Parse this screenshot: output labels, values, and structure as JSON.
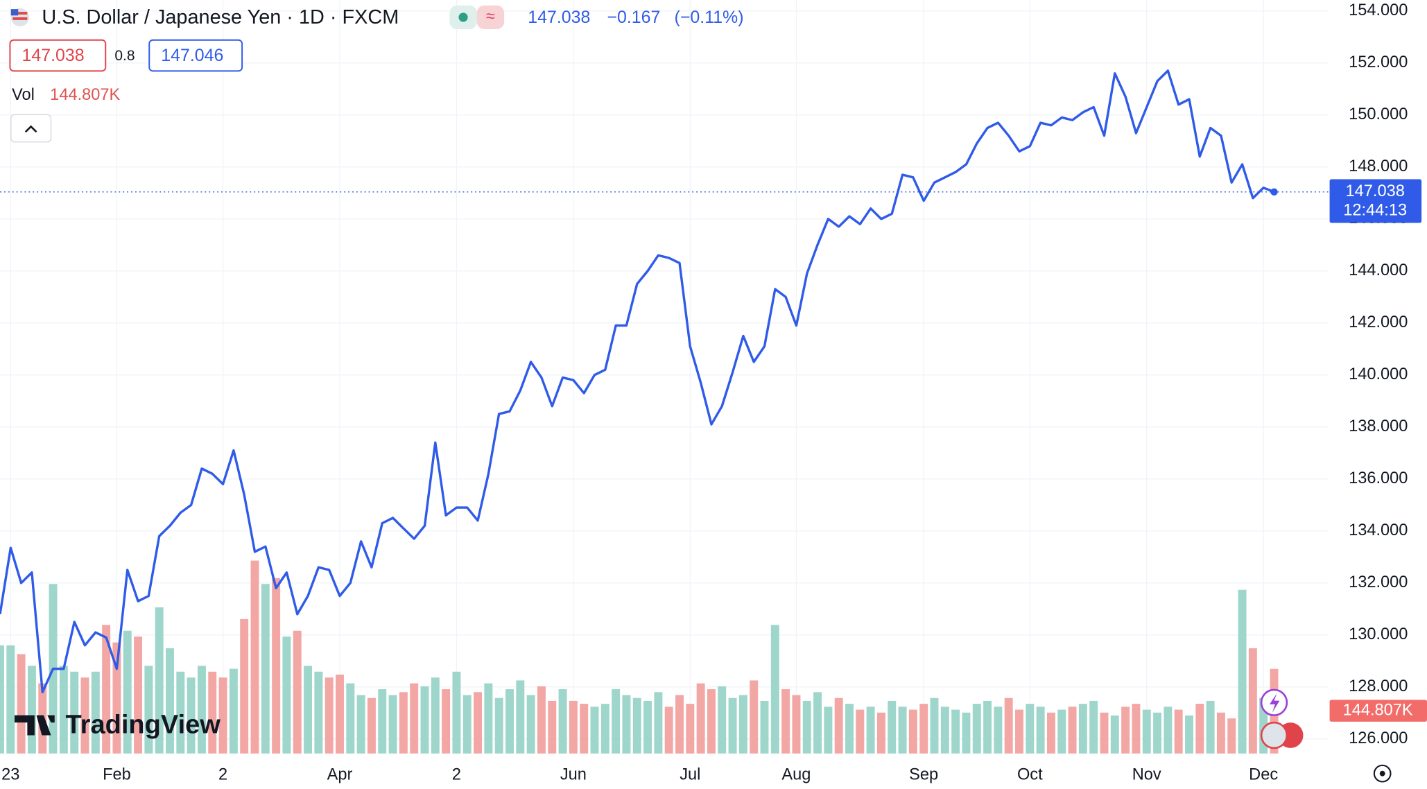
{
  "header": {
    "title": "U.S. Dollar / Japanese Yen · 1D · FXCM",
    "last": "147.038",
    "change": "−0.167",
    "change_pct": "(−0.11%)",
    "bid": "147.038",
    "spread": "0.8",
    "ask": "147.046",
    "volume_label": "Vol",
    "volume_value": "144.807K"
  },
  "brand": "TradingView",
  "chart_data": [
    {
      "type": "line",
      "color": "#2f5be8",
      "categories": [
        null,
        "23",
        null,
        null,
        null,
        null,
        null,
        null,
        null,
        null,
        null,
        "Feb",
        null,
        null,
        null,
        null,
        null,
        null,
        null,
        null,
        null,
        "2",
        null,
        null,
        null,
        null,
        null,
        null,
        null,
        null,
        null,
        null,
        "Apr",
        null,
        null,
        null,
        null,
        null,
        null,
        null,
        null,
        null,
        null,
        "2",
        null,
        null,
        null,
        null,
        null,
        null,
        null,
        null,
        null,
        null,
        "Jun",
        null,
        null,
        null,
        null,
        null,
        null,
        null,
        null,
        null,
        null,
        "Jul",
        null,
        null,
        null,
        null,
        null,
        null,
        null,
        null,
        null,
        "Aug",
        null,
        null,
        null,
        null,
        null,
        null,
        null,
        null,
        null,
        null,
        null,
        "Sep",
        null,
        null,
        null,
        null,
        null,
        null,
        null,
        null,
        null,
        "Oct",
        null,
        null,
        null,
        null,
        null,
        null,
        null,
        null,
        null,
        null,
        "Nov",
        null,
        null,
        null,
        null,
        null,
        null,
        null,
        null,
        null,
        null,
        "Dec",
        null
      ],
      "values": [
        130.8,
        133.35,
        132.0,
        132.4,
        127.8,
        128.7,
        128.7,
        130.5,
        129.6,
        130.1,
        129.9,
        128.7,
        132.5,
        131.3,
        131.5,
        133.8,
        134.2,
        134.7,
        135.0,
        136.4,
        136.2,
        135.8,
        137.1,
        135.4,
        133.2,
        133.4,
        131.8,
        132.4,
        130.8,
        131.5,
        132.6,
        132.5,
        131.5,
        132.0,
        133.6,
        132.6,
        134.3,
        134.5,
        134.1,
        133.7,
        134.2,
        137.4,
        134.6,
        134.9,
        134.9,
        134.4,
        136.2,
        138.5,
        138.6,
        139.4,
        140.5,
        139.9,
        138.8,
        139.9,
        139.8,
        139.3,
        140.0,
        140.2,
        141.9,
        141.9,
        143.5,
        144.0,
        144.6,
        144.5,
        144.3,
        141.1,
        139.7,
        138.1,
        138.8,
        140.1,
        141.5,
        140.5,
        141.1,
        143.3,
        143.0,
        141.9,
        143.9,
        145.0,
        146.0,
        145.7,
        146.1,
        145.8,
        146.4,
        146.0,
        146.2,
        147.7,
        147.6,
        146.7,
        147.4,
        147.6,
        147.8,
        148.1,
        148.9,
        149.5,
        149.7,
        149.2,
        148.6,
        148.8,
        149.7,
        149.6,
        149.9,
        149.8,
        150.1,
        150.3,
        149.2,
        151.6,
        150.7,
        149.3,
        150.3,
        151.3,
        151.7,
        150.4,
        150.6,
        148.4,
        149.5,
        149.2,
        147.4,
        148.1,
        146.8,
        147.2,
        147.038
      ],
      "last_label": "147.038",
      "countdown": "12:44:13",
      "ylim": [
        125.44,
        154.42
      ],
      "yticks": [
        {
          "value": 126,
          "label": "126.000"
        },
        {
          "value": 128,
          "label": "128.000"
        },
        {
          "value": 130,
          "label": "130.000"
        },
        {
          "value": 132,
          "label": "132.000"
        },
        {
          "value": 134,
          "label": "134.000"
        },
        {
          "value": 136,
          "label": "136.000"
        },
        {
          "value": 138,
          "label": "138.000"
        },
        {
          "value": 140,
          "label": "140.000"
        },
        {
          "value": 142,
          "label": "142.000"
        },
        {
          "value": 144,
          "label": "144.000"
        },
        {
          "value": 146,
          "label": "146.000"
        },
        {
          "value": 148,
          "label": "148.000"
        },
        {
          "value": 150,
          "label": "150.000"
        },
        {
          "value": 152,
          "label": "152.000"
        },
        {
          "value": 154,
          "label": "154.000"
        }
      ],
      "grid": true
    },
    {
      "type": "bar",
      "up_color": "#9fd6cb",
      "down_color": "#f3a7a5",
      "label_color": "#f26d6a",
      "values": [
        185000,
        185000,
        170000,
        150000,
        120000,
        290000,
        150000,
        140000,
        130000,
        140000,
        220000,
        190000,
        210000,
        200000,
        150000,
        250000,
        180000,
        140000,
        130000,
        150000,
        140000,
        130000,
        145000,
        230000,
        330000,
        290000,
        300000,
        200000,
        210000,
        150000,
        140000,
        130000,
        135000,
        120000,
        100000,
        95000,
        110000,
        100000,
        105000,
        120000,
        115000,
        130000,
        110000,
        140000,
        100000,
        105000,
        120000,
        95000,
        110000,
        125000,
        100000,
        115000,
        90000,
        110000,
        90000,
        85000,
        80000,
        85000,
        110000,
        100000,
        95000,
        90000,
        105000,
        80000,
        100000,
        85000,
        120000,
        110000,
        115000,
        95000,
        100000,
        125000,
        90000,
        220000,
        110000,
        100000,
        90000,
        105000,
        80000,
        95000,
        85000,
        75000,
        80000,
        70000,
        90000,
        80000,
        75000,
        85000,
        95000,
        80000,
        75000,
        70000,
        85000,
        90000,
        80000,
        95000,
        75000,
        85000,
        80000,
        70000,
        75000,
        80000,
        85000,
        90000,
        70000,
        65000,
        80000,
        85000,
        75000,
        70000,
        80000,
        75000,
        65000,
        85000,
        90000,
        70000,
        60000,
        280000,
        180000,
        95000,
        144807
      ],
      "value_labels": [
        null,
        null,
        null,
        null,
        null,
        null,
        null,
        null,
        null,
        null,
        null,
        null,
        null,
        null,
        null,
        null,
        null,
        null,
        null,
        null,
        null,
        null,
        null,
        null,
        null,
        null,
        null,
        null,
        null,
        null,
        null,
        null,
        null,
        null,
        null,
        null,
        null,
        null,
        null,
        null,
        null,
        null,
        null,
        null,
        null,
        null,
        null,
        null,
        null,
        null,
        null,
        null,
        null,
        null,
        null,
        null,
        null,
        null,
        null,
        null,
        null,
        null,
        null,
        null,
        null,
        null,
        null,
        null,
        null,
        null,
        null,
        null,
        null,
        null,
        null,
        null,
        null,
        null,
        null,
        null,
        null,
        null,
        null,
        null,
        null,
        null,
        null,
        null,
        null,
        null,
        null,
        null,
        null,
        null,
        null,
        null,
        null,
        null,
        null,
        null,
        null,
        null,
        null,
        null,
        null,
        null,
        null,
        null,
        null,
        null,
        null,
        null,
        null,
        null,
        null,
        null,
        null,
        null,
        null,
        null,
        "144.807K"
      ]
    }
  ]
}
